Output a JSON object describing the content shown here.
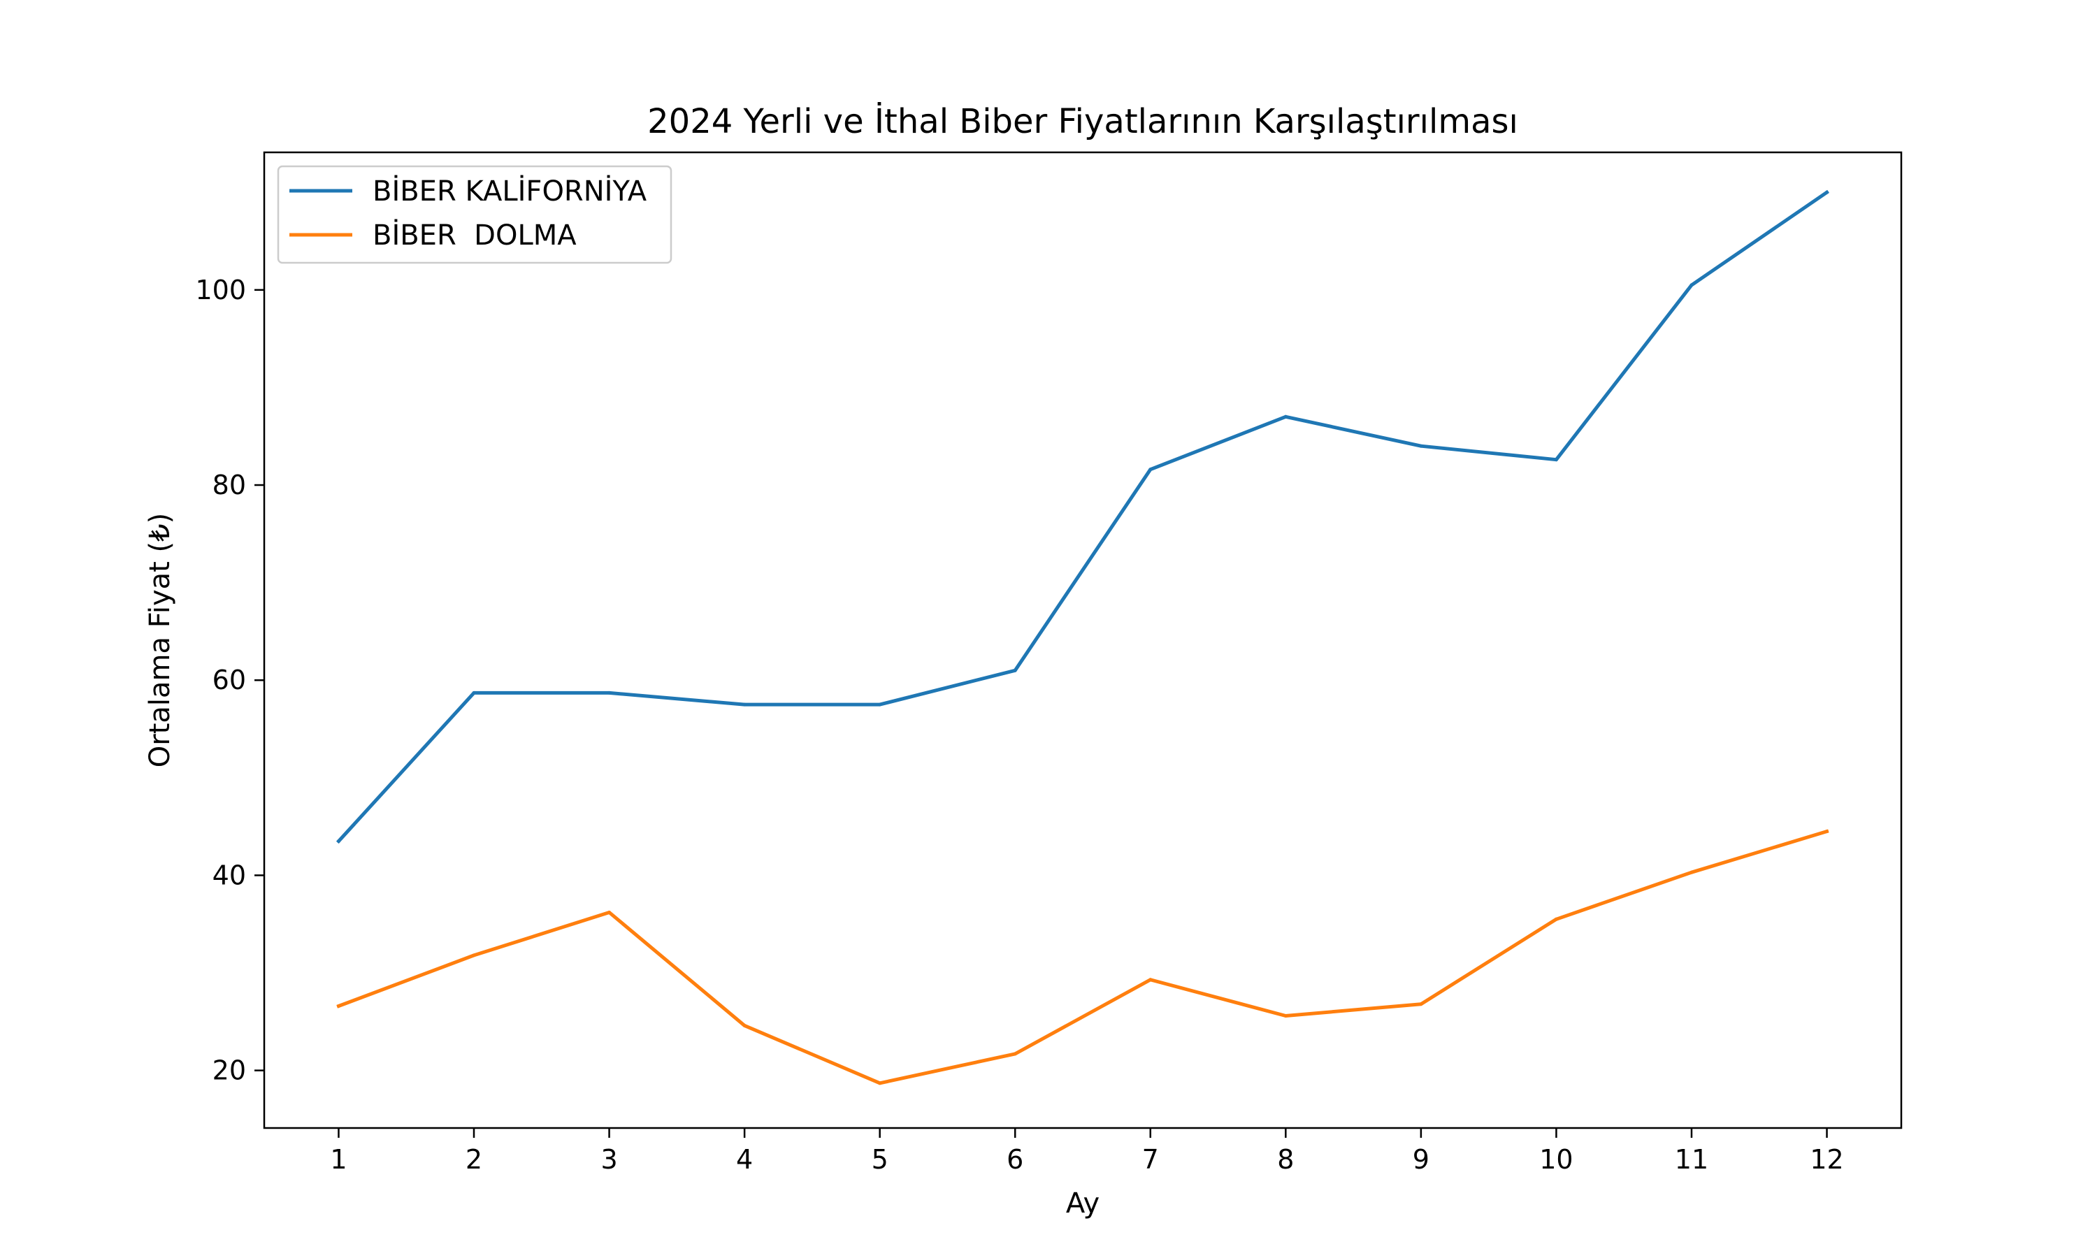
{
  "chart_data": {
    "type": "line",
    "title": "2024 Yerli ve İthal Biber Fiyatlarının Karşılaştırılması",
    "xlabel": "Ay",
    "ylabel": "Ortalama Fiyat (₺)",
    "x": [
      1,
      2,
      3,
      4,
      5,
      6,
      7,
      8,
      9,
      10,
      11,
      12
    ],
    "x_ticks": [
      "1",
      "2",
      "3",
      "4",
      "5",
      "6",
      "7",
      "8",
      "9",
      "10",
      "11",
      "12"
    ],
    "y_ticks": [
      "20",
      "40",
      "60",
      "80",
      "100"
    ],
    "xlim": [
      0.45,
      12.55
    ],
    "ylim": [
      14.1,
      114.1
    ],
    "grid": false,
    "legend_position": "upper-left",
    "series": [
      {
        "name": "BİBER KALİFORNİYA",
        "color": "#1f77b4",
        "values": [
          43.5,
          58.7,
          58.7,
          57.5,
          57.5,
          61.0,
          81.6,
          87.0,
          84.0,
          82.6,
          100.5,
          110.0
        ]
      },
      {
        "name": "BİBER  DOLMA",
        "color": "#ff7f0e",
        "values": [
          26.6,
          31.8,
          36.2,
          24.6,
          18.7,
          21.7,
          29.3,
          25.6,
          26.8,
          35.5,
          40.3,
          44.5
        ]
      }
    ]
  }
}
